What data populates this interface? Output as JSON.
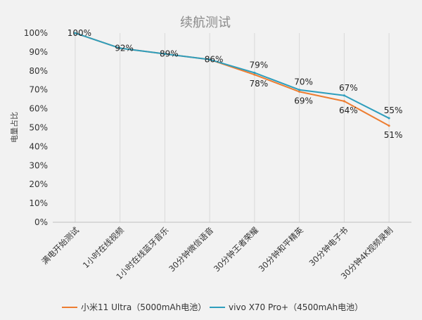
{
  "chart_data": {
    "type": "line",
    "title": "续航测试",
    "xlabel": "",
    "ylabel": "电量占比",
    "ylim": [
      0,
      100
    ],
    "yticks": [
      "0%",
      "10%",
      "20%",
      "30%",
      "40%",
      "50%",
      "60%",
      "70%",
      "80%",
      "90%",
      "100%"
    ],
    "grid": "vertical",
    "legend_position": "bottom",
    "categories": [
      "满电开始测试",
      "1小时在线视频",
      "1小时在线蓝牙音乐",
      "30分钟微信语音",
      "30分钟王者荣耀",
      "30分钟和平精英",
      "30分钟电子书",
      "30分钟4K视频录制"
    ],
    "series": [
      {
        "name": "小米11 Ultra（5000mAh电池）",
        "color": "#ed7d31",
        "values": [
          100,
          92,
          89,
          86,
          78,
          69,
          64,
          51
        ],
        "labels": [
          "100%",
          "92%",
          "89%",
          "86%",
          "78%",
          "69%",
          "64%",
          "51%"
        ]
      },
      {
        "name": "vivo X70 Pro+（4500mAh电池）",
        "color": "#2e9ebd",
        "values": [
          100,
          92,
          89,
          86,
          79,
          70,
          67,
          55
        ],
        "labels": [
          "100%",
          "92%",
          "89%",
          "86%",
          "79%",
          "70%",
          "67%",
          "55%"
        ]
      }
    ]
  }
}
